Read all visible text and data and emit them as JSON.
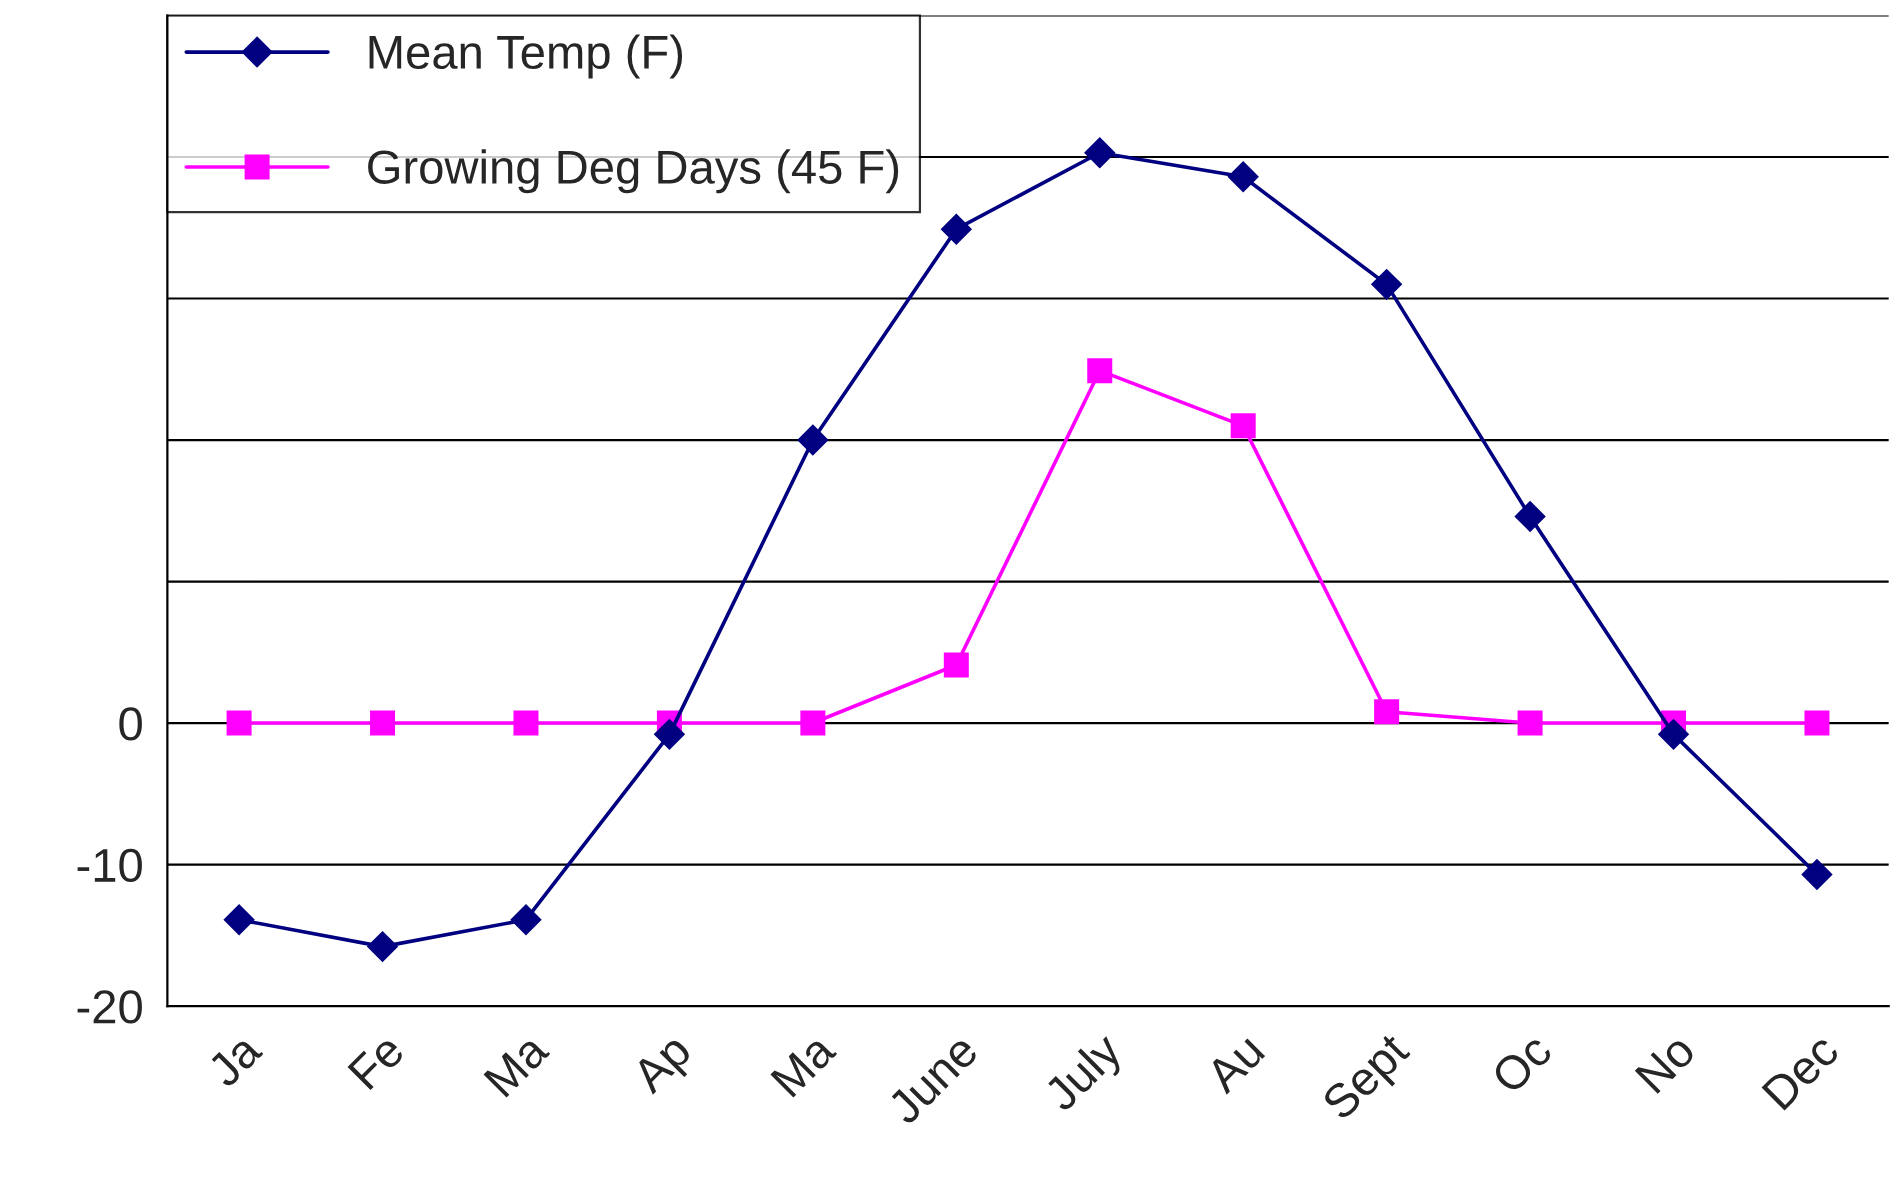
{
  "chart_data": {
    "type": "line",
    "categories": [
      "Ja",
      "Fe",
      "Ma",
      "Ap",
      "Ma",
      "June",
      "July",
      "Au",
      "Sept",
      "Oc",
      "No",
      "Dec"
    ],
    "series": [
      {
        "name": "Mean Temp (F)",
        "color": "#000080",
        "marker": "diamond",
        "values": [
          -13.9,
          -15.8,
          -13.9,
          -0.8,
          20,
          34.9,
          40.3,
          38.6,
          31.0,
          14.6,
          -0.8,
          -10.7
        ]
      },
      {
        "name": "Growing Deg Days (45 F)",
        "color": "#ff00ff",
        "marker": "square",
        "values": [
          0,
          0,
          0,
          0,
          0,
          4.1,
          24.9,
          21.0,
          0.8,
          0,
          0,
          0
        ]
      }
    ],
    "ylim": [
      -20,
      50
    ],
    "yticks": [
      -20,
      -10,
      0,
      {
        "value": 10,
        "label": null
      },
      {
        "value": 20,
        "label": null
      },
      {
        "value": 30,
        "label": null
      },
      {
        "value": 40,
        "label": null
      },
      {
        "value": 50,
        "label": null
      }
    ],
    "grid": "y",
    "legend": "top left",
    "line_style": "solid"
  }
}
